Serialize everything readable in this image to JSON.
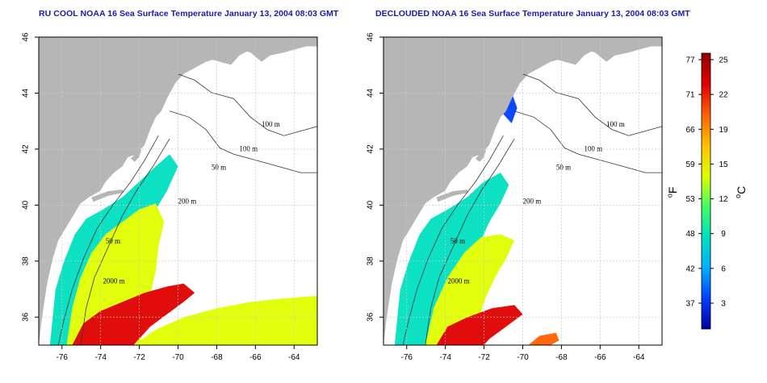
{
  "panels": [
    {
      "id": "left",
      "title": "RU COOL NOAA 16 Sea Surface Temperature January 13, 2004 08:03 GMT"
    },
    {
      "id": "right",
      "title": "DECLOUDED NOAA 16 Sea Surface Temperature January 13, 2004 08:03 GMT"
    }
  ],
  "axes": {
    "lat_ticks": [
      "36",
      "38",
      "40",
      "42",
      "44",
      "46"
    ],
    "lon_ticks": [
      "-76",
      "-74",
      "-72",
      "-70",
      "-68",
      "-66",
      "-64"
    ],
    "lon_range": [
      -77.2,
      -62.8
    ],
    "lat_range": [
      35.0,
      46.0
    ],
    "grid": true
  },
  "contours": {
    "labels_left": [
      "100 m",
      "100 m",
      "50 m",
      "200 m",
      "50 m",
      "2000 m"
    ],
    "labels_right": [
      "100 m",
      "100 m",
      "50 m",
      "200 m",
      "50 m",
      "2000 m"
    ]
  },
  "colorbar": {
    "fahrenheit_ticks": [
      "77",
      "71",
      "66",
      "59",
      "53",
      "48",
      "42",
      "37"
    ],
    "celsius_ticks": [
      "25",
      "22",
      "19",
      "15",
      "12",
      "9",
      "6",
      "3"
    ],
    "f_label": "F",
    "c_label": "C",
    "degree": "o",
    "colors": [
      "#0000a0",
      "#0040ff",
      "#00b0ff",
      "#00e0c0",
      "#40ff60",
      "#e0ff00",
      "#ffc000",
      "#ff6000",
      "#e00000",
      "#900000"
    ]
  },
  "colors": {
    "land": "#b6b6b6",
    "ocean_nodata": "#ffffff",
    "grid": "#c8c8c8",
    "title": "#1a1aa6"
  }
}
